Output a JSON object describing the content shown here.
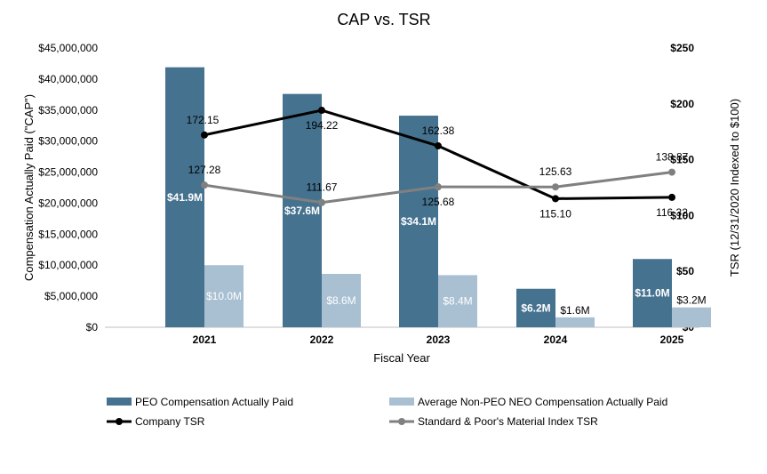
{
  "chart_data": {
    "type": "bar",
    "title": "CAP vs. TSR",
    "xlabel": "Fiscal Year",
    "ylabel": "Compensation Actually Paid (\"CAP\")",
    "y2label": "TSR (12/31/2020 Indexed to $100)",
    "categories": [
      "2021",
      "2022",
      "2023",
      "2024",
      "2025"
    ],
    "ylim": [
      0,
      45000000
    ],
    "y_ticks": [
      "$0",
      "$5,000,000",
      "$10,000,000",
      "$15,000,000",
      "$20,000,000",
      "$25,000,000",
      "$30,000,000",
      "$35,000,000",
      "$40,000,000",
      "$45,000,000"
    ],
    "y2lim": [
      0,
      250
    ],
    "y2_ticks": [
      "$0",
      "$50",
      "$100",
      "$150",
      "$200",
      "$250"
    ],
    "bar_series": [
      {
        "name": "PEO Compensation Actually Paid",
        "color": "#45728f",
        "label_color": "#ffffff",
        "values": [
          41900000,
          37600000,
          34100000,
          6200000,
          11000000
        ],
        "labels": [
          "$41.9M",
          "$37.6M",
          "$34.1M",
          "$6.2M",
          "$11.0M"
        ]
      },
      {
        "name": "Average Non-PEO NEO Compensation Actually Paid",
        "color": "#a9bfd2",
        "label_color": "#ffffff",
        "values": [
          10000000,
          8600000,
          8400000,
          1600000,
          3200000
        ],
        "labels": [
          "$10.0M",
          "$8.6M",
          "$8.4M",
          "$1.6M",
          "$3.2M"
        ]
      }
    ],
    "line_series": [
      {
        "name": "Company TSR",
        "color": "#000000",
        "values": [
          172.15,
          194.22,
          162.38,
          115.1,
          116.32
        ],
        "labels": [
          "172.15",
          "194.22",
          "162.38",
          "115.10",
          "116.32"
        ]
      },
      {
        "name": "Standard & Poor's Material Index TSR",
        "color": "#808080",
        "values": [
          127.28,
          111.67,
          125.68,
          125.63,
          138.87
        ],
        "labels": [
          "127.28",
          "111.67",
          "125.68",
          "125.63",
          "138.87"
        ]
      }
    ],
    "legend": [
      {
        "name": "PEO Compensation Actually Paid",
        "kind": "bar",
        "color": "#45728f"
      },
      {
        "name": "Average Non-PEO NEO Compensation Actually Paid",
        "kind": "bar",
        "color": "#a9bfd2"
      },
      {
        "name": "Company TSR",
        "kind": "line",
        "color": "#000000"
      },
      {
        "name": "Standard & Poor's Material Index TSR",
        "kind": "line",
        "color": "#808080"
      }
    ],
    "legend_placement": "bottom",
    "grid": false
  }
}
